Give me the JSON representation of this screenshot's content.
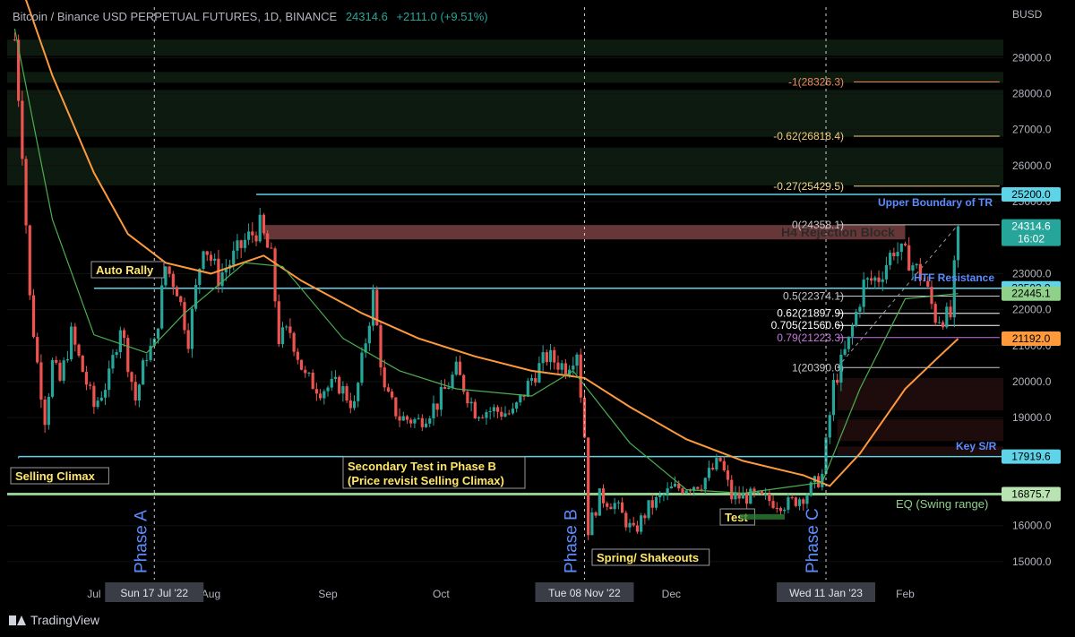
{
  "header": {
    "symbol": "Bitcoin / Binance USD PERPETUAL FUTURES, 1D, BINANCE",
    "price": "24314.6",
    "change": "+2111.0 (+9.51%)"
  },
  "branding": {
    "logo_text": "TradingView"
  },
  "colors": {
    "background": "#000000",
    "up": "#26a69a",
    "down": "#ef5350",
    "ema_orange": "#ff9a3c",
    "ma_green": "#4caf50",
    "tr_line": "#5fd3e8",
    "eq_line": "#8fd18a",
    "annotation_yellow": "#ffe76a",
    "phase_blue": "#5b8cff"
  },
  "chart_data": {
    "type": "candlestick",
    "currency": "BUSD",
    "ylim": [
      14500,
      30400
    ],
    "y_ticks": [
      "29000.0",
      "28000.0",
      "27000.0",
      "26000.0",
      "25000.0",
      "23000.0",
      "22000.0",
      "21000.0",
      "20000.0",
      "19000.0",
      "16000.0",
      "15000.0"
    ],
    "y_tick_values": [
      29000,
      28000,
      27000,
      26000,
      25000,
      23000,
      22000,
      21000,
      20000,
      19000,
      16000,
      15000
    ],
    "x_labels": [
      "Jul",
      "Aug",
      "Sep",
      "Oct",
      "Dec",
      "Feb"
    ],
    "x_label_dates": [
      "2022-07-01",
      "2022-08-01",
      "2022-09-01",
      "2022-10-01",
      "2022-12-01",
      "2023-02-01"
    ],
    "x_range": [
      "2022-06-08",
      "2023-02-27"
    ],
    "date_flags": [
      {
        "label": "Sun 17 Jul '22",
        "date": "2022-07-17"
      },
      {
        "label": "Tue 08 Nov '22",
        "date": "2022-11-08"
      },
      {
        "label": "Wed 11 Jan '23",
        "date": "2023-01-11"
      }
    ],
    "phases": [
      {
        "label": "Phase A",
        "date": "2022-07-17"
      },
      {
        "label": "Phase B",
        "date": "2022-11-08"
      },
      {
        "label": "Phase C",
        "date": "2023-01-11"
      }
    ],
    "price_tags": [
      {
        "value": 25200,
        "label": "25200.0",
        "style": "cyan"
      },
      {
        "value": 24314.6,
        "label": "24314.6",
        "sub": "16:02",
        "style": "green"
      },
      {
        "value": 22593.9,
        "label": "22593.9",
        "style": "cyan"
      },
      {
        "value": 22445.1,
        "label": "22445.1",
        "style": "lightgreen"
      },
      {
        "value": 21192,
        "label": "21192.0",
        "style": "orange"
      },
      {
        "value": 17919.6,
        "label": "17919.6",
        "style": "cyan"
      },
      {
        "value": 16875.7,
        "label": "16875.7",
        "style": "eq"
      }
    ],
    "levels": [
      {
        "name": "Upper Boundary of TR",
        "value": 25200,
        "from": "2022-08-13"
      },
      {
        "name": "HTF Resistance",
        "value": 22593.9,
        "from": "2022-07-01"
      },
      {
        "name": "Key S/R",
        "value": 17919.6,
        "from": "2022-06-11"
      },
      {
        "name": "EQ (Swing range)",
        "value": 16875.7,
        "from": "2022-06-08"
      }
    ],
    "rejection_block": {
      "label": "H4 Rejection Block",
      "top": 24350,
      "bottom": 23950,
      "from": "2022-08-15",
      "to": "2023-02-01"
    },
    "fib_levels": [
      {
        "label": "-1(28326.3)",
        "value": 28326.3,
        "color": "#f08a5d"
      },
      {
        "label": "-0.62(26818.4)",
        "value": 26818.4,
        "color": "#f5c97a"
      },
      {
        "label": "-0.27(25429.5)",
        "value": 25429.5,
        "color": "#f5d58a"
      },
      {
        "label": "0(24358.1)",
        "value": 24358.1,
        "color": "#c8c8c8"
      },
      {
        "label": "0.5(22374.1)",
        "value": 22374.1,
        "color": "#c8c8c8"
      },
      {
        "label": "0.62(21897.9)",
        "value": 21897.9,
        "color": "#ffffff"
      },
      {
        "label": "0.705(21560.6)",
        "value": 21560.6,
        "color": "#ffffff"
      },
      {
        "label": "0.79(21223.3)",
        "value": 21223.3,
        "color": "#c678dd"
      },
      {
        "label": "1(20390.0)",
        "value": 20390,
        "color": "#c8c8c8"
      }
    ],
    "fib_range": {
      "from": "2023-01-14",
      "to": "2023-02-26"
    },
    "annotations": [
      {
        "text": "Selling Climax",
        "date": "2022-06-12",
        "value": 17100
      },
      {
        "text": "Auto Rally",
        "date": "2022-07-01",
        "value": 23000
      },
      {
        "text": "Secondary Test in Phase B",
        "date": "2022-09-11",
        "value": 17850
      },
      {
        "text": "(Price revisit Selling Climax)",
        "date": "2022-09-11",
        "value": 17500
      },
      {
        "text": "Spring/ Shakeouts",
        "date": "2022-11-09",
        "value": 15500
      },
      {
        "text": "Test",
        "date": "2022-12-14",
        "value": 16100
      }
    ],
    "series": [
      {
        "name": "Close",
        "key": "close"
      },
      {
        "name": "EMA",
        "key": "ema"
      },
      {
        "name": "MA",
        "key": "ma"
      }
    ],
    "close": [
      [
        "2022-06-10",
        29500
      ],
      [
        "2022-06-12",
        26500
      ],
      [
        "2022-06-14",
        22300
      ],
      [
        "2022-06-16",
        20500
      ],
      [
        "2022-06-18",
        19000
      ],
      [
        "2022-06-20",
        20500
      ],
      [
        "2022-06-22",
        20000
      ],
      [
        "2022-06-25",
        21300
      ],
      [
        "2022-06-28",
        20300
      ],
      [
        "2022-07-01",
        19300
      ],
      [
        "2022-07-05",
        20100
      ],
      [
        "2022-07-08",
        21600
      ],
      [
        "2022-07-12",
        19500
      ],
      [
        "2022-07-15",
        20800
      ],
      [
        "2022-07-17",
        21000
      ],
      [
        "2022-07-20",
        23200
      ],
      [
        "2022-07-23",
        22600
      ],
      [
        "2022-07-26",
        21200
      ],
      [
        "2022-07-30",
        23900
      ],
      [
        "2022-08-03",
        22900
      ],
      [
        "2022-08-06",
        23300
      ],
      [
        "2022-08-10",
        23900
      ],
      [
        "2022-08-14",
        24300
      ],
      [
        "2022-08-17",
        23400
      ],
      [
        "2022-08-19",
        21200
      ],
      [
        "2022-08-22",
        21400
      ],
      [
        "2022-08-26",
        20100
      ],
      [
        "2022-08-30",
        19800
      ],
      [
        "2022-09-04",
        19900
      ],
      [
        "2022-09-08",
        19300
      ],
      [
        "2022-09-13",
        22400
      ],
      [
        "2022-09-16",
        19700
      ],
      [
        "2022-09-20",
        19000
      ],
      [
        "2022-09-25",
        18900
      ],
      [
        "2022-09-30",
        19400
      ],
      [
        "2022-10-05",
        20300
      ],
      [
        "2022-10-10",
        19200
      ],
      [
        "2022-10-15",
        19200
      ],
      [
        "2022-10-20",
        19100
      ],
      [
        "2022-10-25",
        20100
      ],
      [
        "2022-10-29",
        20700
      ],
      [
        "2022-11-03",
        20400
      ],
      [
        "2022-11-06",
        20900
      ],
      [
        "2022-11-08",
        18500
      ],
      [
        "2022-11-09",
        15900
      ],
      [
        "2022-11-12",
        16800
      ],
      [
        "2022-11-16",
        16600
      ],
      [
        "2022-11-21",
        15800
      ],
      [
        "2022-11-25",
        16500
      ],
      [
        "2022-12-01",
        17000
      ],
      [
        "2022-12-05",
        17100
      ],
      [
        "2022-12-09",
        17200
      ],
      [
        "2022-12-14",
        17800
      ],
      [
        "2022-12-17",
        16800
      ],
      [
        "2022-12-22",
        16800
      ],
      [
        "2022-12-27",
        16700
      ],
      [
        "2023-01-01",
        16600
      ],
      [
        "2023-01-06",
        16900
      ],
      [
        "2023-01-10",
        17400
      ],
      [
        "2023-01-13",
        19900
      ],
      [
        "2023-01-17",
        21100
      ],
      [
        "2023-01-21",
        22700
      ],
      [
        "2023-01-25",
        22900
      ],
      [
        "2023-01-29",
        23700
      ],
      [
        "2023-02-02",
        23400
      ],
      [
        "2023-02-06",
        22800
      ],
      [
        "2023-02-09",
        21800
      ],
      [
        "2023-02-13",
        21800
      ],
      [
        "2023-02-15",
        24314.6
      ]
    ],
    "ema": [
      [
        "2022-06-10",
        31500
      ],
      [
        "2022-06-20",
        28500
      ],
      [
        "2022-07-01",
        25800
      ],
      [
        "2022-07-10",
        24100
      ],
      [
        "2022-07-20",
        23300
      ],
      [
        "2022-08-01",
        23000
      ],
      [
        "2022-08-15",
        23500
      ],
      [
        "2022-08-25",
        22800
      ],
      [
        "2022-09-10",
        21900
      ],
      [
        "2022-09-25",
        21200
      ],
      [
        "2022-10-10",
        20700
      ],
      [
        "2022-10-25",
        20300
      ],
      [
        "2022-11-08",
        20100
      ],
      [
        "2022-11-20",
        19300
      ],
      [
        "2022-12-05",
        18400
      ],
      [
        "2022-12-20",
        17800
      ],
      [
        "2023-01-05",
        17400
      ],
      [
        "2023-01-12",
        17100
      ],
      [
        "2023-01-20",
        18000
      ],
      [
        "2023-02-01",
        19800
      ],
      [
        "2023-02-10",
        20700
      ],
      [
        "2023-02-15",
        21192
      ]
    ],
    "ma": [
      [
        "2022-06-10",
        29800
      ],
      [
        "2022-06-20",
        24500
      ],
      [
        "2022-07-01",
        21300
      ],
      [
        "2022-07-15",
        20800
      ],
      [
        "2022-07-25",
        21900
      ],
      [
        "2022-08-10",
        23300
      ],
      [
        "2022-08-20",
        23200
      ],
      [
        "2022-09-05",
        21200
      ],
      [
        "2022-09-20",
        20300
      ],
      [
        "2022-10-05",
        19800
      ],
      [
        "2022-10-25",
        19600
      ],
      [
        "2022-11-05",
        20300
      ],
      [
        "2022-11-20",
        18300
      ],
      [
        "2022-12-05",
        17000
      ],
      [
        "2022-12-20",
        16900
      ],
      [
        "2023-01-10",
        17200
      ],
      [
        "2023-01-20",
        19800
      ],
      [
        "2023-02-01",
        22300
      ],
      [
        "2023-02-15",
        22445.1
      ]
    ]
  }
}
